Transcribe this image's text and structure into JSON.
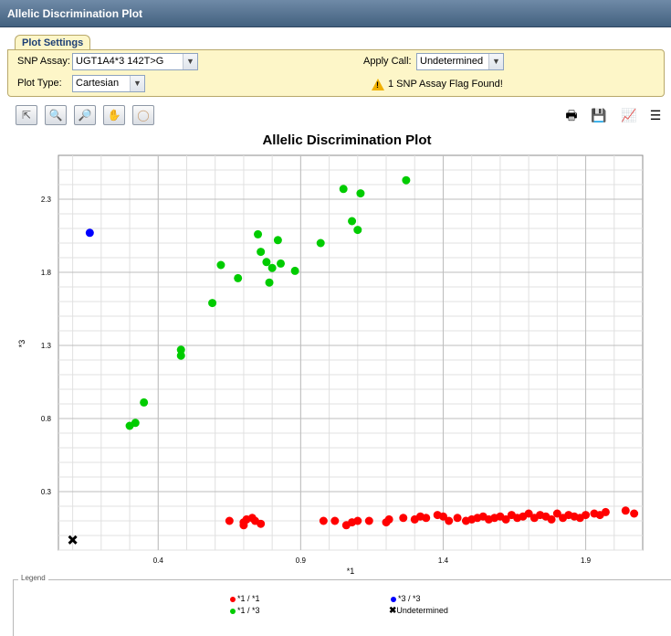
{
  "window": {
    "title": "Allelic Discrimination Plot"
  },
  "settings": {
    "tab_label": "Plot Settings",
    "snp_assay_label": "SNP Assay:",
    "snp_assay_value": "UGT1A4*3  142T>G",
    "plot_type_label": "Plot Type:",
    "plot_type_value": "Cartesian",
    "apply_call_label": "Apply Call:",
    "apply_call_value": "Undetermined",
    "flag_text": "1 SNP Assay Flag Found!"
  },
  "toolbar": {
    "tools": [
      "select-arrow-icon",
      "zoom-in-icon",
      "zoom-out-icon",
      "pan-hand-icon",
      "lasso-icon"
    ],
    "right_icons": [
      "print-icon",
      "export-icon",
      "line-chart-icon",
      "list-icon"
    ]
  },
  "legend": {
    "title": "Legend",
    "items": [
      {
        "label": "*1 / *1",
        "color": "#ff0000"
      },
      {
        "label": "*3 / *3",
        "color": "#0000ff"
      },
      {
        "label": "*1 / *3",
        "color": "#00cc00"
      },
      {
        "label": "Undetermined",
        "color": "#000000"
      }
    ]
  },
  "chart_data": {
    "type": "scatter",
    "title": "Allelic Discrimination Plot",
    "xlabel": "*1",
    "ylabel": "*3",
    "xlim": [
      0.05,
      2.1
    ],
    "ylim": [
      -0.1,
      2.6
    ],
    "x_ticks": [
      0.4,
      0.9,
      1.4,
      1.9
    ],
    "y_ticks": [
      0.3,
      0.8,
      1.3,
      1.8,
      2.3
    ],
    "grid": true,
    "series": [
      {
        "name": "*1 / *1",
        "color": "#ff0000",
        "points": [
          [
            0.65,
            0.1
          ],
          [
            0.7,
            0.09
          ],
          [
            0.7,
            0.07
          ],
          [
            0.71,
            0.11
          ],
          [
            0.73,
            0.12
          ],
          [
            0.74,
            0.1
          ],
          [
            0.76,
            0.08
          ],
          [
            0.98,
            0.1
          ],
          [
            1.02,
            0.1
          ],
          [
            1.06,
            0.07
          ],
          [
            1.08,
            0.09
          ],
          [
            1.1,
            0.1
          ],
          [
            1.14,
            0.1
          ],
          [
            1.2,
            0.09
          ],
          [
            1.21,
            0.11
          ],
          [
            1.26,
            0.12
          ],
          [
            1.3,
            0.11
          ],
          [
            1.32,
            0.13
          ],
          [
            1.34,
            0.12
          ],
          [
            1.38,
            0.14
          ],
          [
            1.4,
            0.13
          ],
          [
            1.42,
            0.1
          ],
          [
            1.45,
            0.12
          ],
          [
            1.48,
            0.1
          ],
          [
            1.5,
            0.11
          ],
          [
            1.52,
            0.12
          ],
          [
            1.54,
            0.13
          ],
          [
            1.56,
            0.11
          ],
          [
            1.58,
            0.12
          ],
          [
            1.6,
            0.13
          ],
          [
            1.62,
            0.11
          ],
          [
            1.64,
            0.14
          ],
          [
            1.66,
            0.12
          ],
          [
            1.68,
            0.13
          ],
          [
            1.7,
            0.15
          ],
          [
            1.72,
            0.12
          ],
          [
            1.74,
            0.14
          ],
          [
            1.76,
            0.13
          ],
          [
            1.78,
            0.11
          ],
          [
            1.8,
            0.15
          ],
          [
            1.82,
            0.12
          ],
          [
            1.84,
            0.14
          ],
          [
            1.86,
            0.13
          ],
          [
            1.88,
            0.12
          ],
          [
            1.9,
            0.14
          ],
          [
            1.93,
            0.15
          ],
          [
            1.95,
            0.14
          ],
          [
            1.97,
            0.16
          ],
          [
            2.04,
            0.17
          ],
          [
            2.07,
            0.15
          ]
        ]
      },
      {
        "name": "*1 / *3",
        "color": "#00cc00",
        "points": [
          [
            0.3,
            0.75
          ],
          [
            0.32,
            0.77
          ],
          [
            0.35,
            0.91
          ],
          [
            0.48,
            1.23
          ],
          [
            0.48,
            1.27
          ],
          [
            0.59,
            1.59
          ],
          [
            0.62,
            1.85
          ],
          [
            0.68,
            1.76
          ],
          [
            0.75,
            2.06
          ],
          [
            0.76,
            1.94
          ],
          [
            0.78,
            1.87
          ],
          [
            0.8,
            1.83
          ],
          [
            0.82,
            2.02
          ],
          [
            0.83,
            1.86
          ],
          [
            0.79,
            1.73
          ],
          [
            0.88,
            1.81
          ],
          [
            0.97,
            2.0
          ],
          [
            1.05,
            2.37
          ],
          [
            1.08,
            2.15
          ],
          [
            1.1,
            2.09
          ],
          [
            1.11,
            2.34
          ],
          [
            1.27,
            2.43
          ]
        ]
      },
      {
        "name": "*3 / *3",
        "color": "#0000ff",
        "points": [
          [
            0.16,
            2.07
          ]
        ]
      },
      {
        "name": "Undetermined",
        "color": "#000000",
        "points": [
          [
            0.1,
            -0.03
          ]
        ]
      }
    ]
  }
}
